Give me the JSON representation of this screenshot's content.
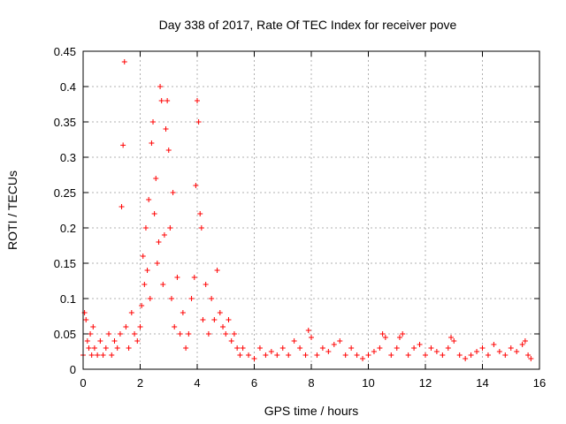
{
  "chart_data": {
    "type": "scatter",
    "title": "Day 338 of 2017, Rate Of TEC Index for receiver pove",
    "xlabel": "GPS time / hours",
    "ylabel": "ROTI / TECUs",
    "xlim": [
      0,
      16
    ],
    "ylim": [
      0,
      0.45
    ],
    "xticks": [
      0,
      2,
      4,
      6,
      8,
      10,
      12,
      14,
      16
    ],
    "yticks": [
      0,
      0.05,
      0.1,
      0.15,
      0.2,
      0.25,
      0.3,
      0.35,
      0.4,
      0.45
    ],
    "grid": true,
    "marker": "plus",
    "color": "#ff0000",
    "series": [
      {
        "name": "ROTI",
        "points": [
          [
            0.0,
            0.02
          ],
          [
            0.05,
            0.08
          ],
          [
            0.1,
            0.07
          ],
          [
            0.15,
            0.04
          ],
          [
            0.2,
            0.03
          ],
          [
            0.25,
            0.05
          ],
          [
            0.3,
            0.02
          ],
          [
            0.35,
            0.06
          ],
          [
            0.4,
            0.03
          ],
          [
            0.5,
            0.02
          ],
          [
            0.6,
            0.04
          ],
          [
            0.7,
            0.02
          ],
          [
            0.8,
            0.03
          ],
          [
            0.9,
            0.05
          ],
          [
            1.0,
            0.02
          ],
          [
            1.1,
            0.04
          ],
          [
            1.2,
            0.03
          ],
          [
            1.3,
            0.05
          ],
          [
            1.35,
            0.23
          ],
          [
            1.4,
            0.317
          ],
          [
            1.45,
            0.435
          ],
          [
            1.5,
            0.06
          ],
          [
            1.6,
            0.03
          ],
          [
            1.7,
            0.08
          ],
          [
            1.8,
            0.05
          ],
          [
            1.9,
            0.04
          ],
          [
            2.0,
            0.06
          ],
          [
            2.05,
            0.09
          ],
          [
            2.1,
            0.16
          ],
          [
            2.15,
            0.12
          ],
          [
            2.2,
            0.2
          ],
          [
            2.25,
            0.14
          ],
          [
            2.3,
            0.24
          ],
          [
            2.35,
            0.1
          ],
          [
            2.4,
            0.32
          ],
          [
            2.45,
            0.35
          ],
          [
            2.5,
            0.22
          ],
          [
            2.55,
            0.27
          ],
          [
            2.6,
            0.15
          ],
          [
            2.65,
            0.18
          ],
          [
            2.7,
            0.4
          ],
          [
            2.75,
            0.38
          ],
          [
            2.8,
            0.12
          ],
          [
            2.85,
            0.19
          ],
          [
            2.9,
            0.34
          ],
          [
            2.95,
            0.38
          ],
          [
            3.0,
            0.31
          ],
          [
            3.05,
            0.2
          ],
          [
            3.1,
            0.1
          ],
          [
            3.15,
            0.25
          ],
          [
            3.2,
            0.06
          ],
          [
            3.3,
            0.13
          ],
          [
            3.4,
            0.05
          ],
          [
            3.5,
            0.08
          ],
          [
            3.6,
            0.03
          ],
          [
            3.7,
            0.05
          ],
          [
            3.8,
            0.1
          ],
          [
            3.9,
            0.13
          ],
          [
            3.95,
            0.26
          ],
          [
            4.0,
            0.38
          ],
          [
            4.05,
            0.35
          ],
          [
            4.1,
            0.22
          ],
          [
            4.15,
            0.2
          ],
          [
            4.2,
            0.07
          ],
          [
            4.3,
            0.12
          ],
          [
            4.4,
            0.05
          ],
          [
            4.5,
            0.1
          ],
          [
            4.6,
            0.07
          ],
          [
            4.7,
            0.14
          ],
          [
            4.8,
            0.08
          ],
          [
            4.9,
            0.06
          ],
          [
            5.0,
            0.05
          ],
          [
            5.1,
            0.07
          ],
          [
            5.2,
            0.04
          ],
          [
            5.3,
            0.05
          ],
          [
            5.4,
            0.03
          ],
          [
            5.5,
            0.02
          ],
          [
            5.6,
            0.03
          ],
          [
            5.8,
            0.02
          ],
          [
            6.0,
            0.015
          ],
          [
            6.2,
            0.03
          ],
          [
            6.4,
            0.02
          ],
          [
            6.6,
            0.025
          ],
          [
            6.8,
            0.02
          ],
          [
            7.0,
            0.03
          ],
          [
            7.2,
            0.02
          ],
          [
            7.4,
            0.04
          ],
          [
            7.6,
            0.03
          ],
          [
            7.8,
            0.02
          ],
          [
            7.9,
            0.055
          ],
          [
            8.0,
            0.045
          ],
          [
            8.2,
            0.02
          ],
          [
            8.4,
            0.03
          ],
          [
            8.6,
            0.025
          ],
          [
            8.8,
            0.035
          ],
          [
            9.0,
            0.04
          ],
          [
            9.2,
            0.02
          ],
          [
            9.4,
            0.03
          ],
          [
            9.6,
            0.02
          ],
          [
            9.8,
            0.015
          ],
          [
            10.0,
            0.02
          ],
          [
            10.2,
            0.025
          ],
          [
            10.4,
            0.03
          ],
          [
            10.5,
            0.05
          ],
          [
            10.6,
            0.045
          ],
          [
            10.8,
            0.02
          ],
          [
            11.0,
            0.03
          ],
          [
            11.1,
            0.045
          ],
          [
            11.2,
            0.05
          ],
          [
            11.4,
            0.02
          ],
          [
            11.6,
            0.03
          ],
          [
            11.8,
            0.035
          ],
          [
            12.0,
            0.02
          ],
          [
            12.2,
            0.03
          ],
          [
            12.4,
            0.025
          ],
          [
            12.6,
            0.02
          ],
          [
            12.8,
            0.03
          ],
          [
            12.9,
            0.045
          ],
          [
            13.0,
            0.04
          ],
          [
            13.2,
            0.02
          ],
          [
            13.4,
            0.015
          ],
          [
            13.6,
            0.02
          ],
          [
            13.8,
            0.025
          ],
          [
            14.0,
            0.03
          ],
          [
            14.2,
            0.02
          ],
          [
            14.4,
            0.035
          ],
          [
            14.6,
            0.025
          ],
          [
            14.8,
            0.02
          ],
          [
            15.0,
            0.03
          ],
          [
            15.2,
            0.025
          ],
          [
            15.4,
            0.035
          ],
          [
            15.5,
            0.04
          ],
          [
            15.6,
            0.02
          ],
          [
            15.7,
            0.015
          ]
        ]
      }
    ]
  }
}
